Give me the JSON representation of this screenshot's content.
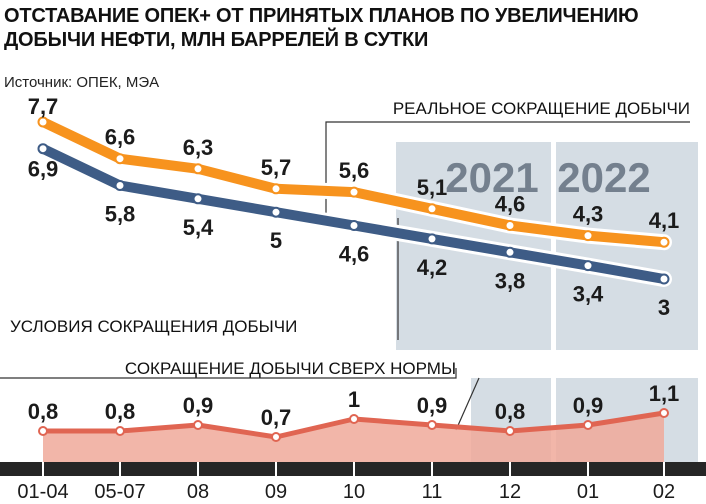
{
  "header": {
    "title_line1": "ОТСТАВАНИЕ ОПЕК+ ОТ ПРИНЯТЫХ ПЛАНОВ ПО УВЕЛИЧЕНИЮ",
    "title_line2": "ДОБЫЧИ НЕФТИ, МЛН БАРРЕЛЕЙ В СУТКИ",
    "source": "Источник: ОПЕК, МЭА"
  },
  "colors": {
    "actual": "#f7931e",
    "conditions": "#3e5c86",
    "excess_line": "#e06552",
    "excess_fill": "#f0a99a",
    "year_band": "#d5dde4",
    "axis_band": "#262626"
  },
  "chart_data": {
    "type": "line",
    "categories": [
      "01-04",
      "05-07",
      "08",
      "09",
      "10",
      "11",
      "12",
      "01",
      "02"
    ],
    "year_labels": [
      "2021",
      "2022"
    ],
    "series": [
      {
        "name": "РЕАЛЬНОЕ СОКРАЩЕНИЕ ДОБЫЧИ",
        "values": [
          7.7,
          6.6,
          6.3,
          5.7,
          5.6,
          5.1,
          4.6,
          4.3,
          4.1
        ],
        "labels": [
          "7,7",
          "6,6",
          "6,3",
          "5,7",
          "5,6",
          "5,1",
          "4,6",
          "4,3",
          "4,1"
        ]
      },
      {
        "name": "УСЛОВИЯ СОКРАЩЕНИЯ ДОБЫЧИ",
        "values": [
          6.9,
          5.8,
          5.4,
          5.0,
          4.6,
          4.2,
          3.8,
          3.4,
          3.0
        ],
        "labels": [
          "6,9",
          "5,8",
          "5,4",
          "5",
          "4,6",
          "4,2",
          "3,8",
          "3,4",
          "3"
        ]
      },
      {
        "name": "СОКРАЩЕНИЕ ДОБЫЧИ СВЕРХ НОРМЫ",
        "type": "area",
        "values": [
          0.8,
          0.8,
          0.9,
          0.7,
          1.0,
          0.9,
          0.8,
          0.9,
          1.1
        ],
        "labels": [
          "0,8",
          "0,8",
          "0,9",
          "0,7",
          "1",
          "0,9",
          "0,8",
          "0,9",
          "1,1"
        ]
      }
    ]
  }
}
